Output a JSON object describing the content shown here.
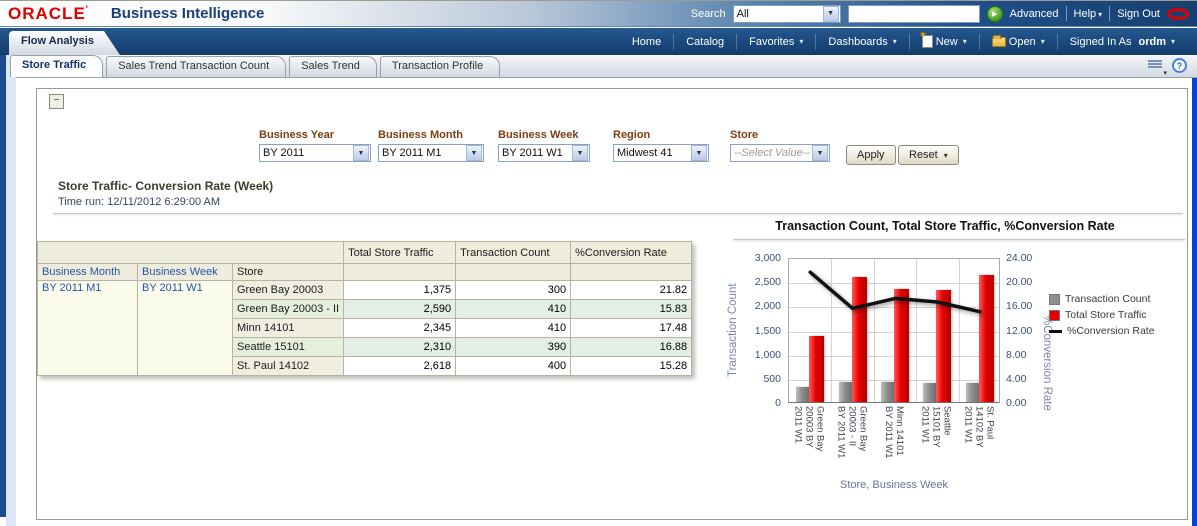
{
  "header": {
    "logo": "ORACLE",
    "product": "Business Intelligence",
    "search_label": "Search",
    "search_scope": "All",
    "search_value": "",
    "advanced": "Advanced",
    "help": "Help",
    "sign_out": "Sign Out"
  },
  "nav": {
    "dashboard_tab": "Flow Analysis",
    "home": "Home",
    "catalog": "Catalog",
    "favorites": "Favorites",
    "dashboards": "Dashboards",
    "new_label": "New",
    "open_label": "Open",
    "signed_in_as": "Signed In As",
    "username": "ordm"
  },
  "tabs": [
    {
      "label": "Store Traffic",
      "active": true
    },
    {
      "label": "Sales Trend Transaction Count",
      "active": false
    },
    {
      "label": "Sales Trend",
      "active": false
    },
    {
      "label": "Transaction Profile",
      "active": false
    }
  ],
  "filters": {
    "prompts": [
      {
        "label": "Business Year",
        "value": "BY 2011",
        "disabled": false
      },
      {
        "label": "Business Month",
        "value": "BY 2011 M1",
        "disabled": false
      },
      {
        "label": "Business Week",
        "value": "BY 2011 W1",
        "disabled": false
      },
      {
        "label": "Region",
        "value": "Midwest 41",
        "disabled": false
      },
      {
        "label": "Store",
        "value": "--Select Value--",
        "disabled": true
      }
    ],
    "apply_label": "Apply",
    "reset_label": "Reset"
  },
  "section": {
    "title": "Store Traffic- Conversion Rate (Week)",
    "time_run": "Time run: 12/11/2012 6:29:00 AM"
  },
  "table": {
    "measure_headers": [
      "Total Store Traffic",
      "Transaction Count",
      "%Conversion Rate"
    ],
    "dim_headers": [
      "Business Month",
      "Business Week",
      "Store"
    ],
    "month": "BY 2011 M1",
    "week": "BY 2011 W1",
    "rows": [
      {
        "store": "Green Bay 20003",
        "traffic": "1,375",
        "count": "300",
        "rate": "21.82"
      },
      {
        "store": "Green Bay 20003 - II",
        "traffic": "2,590",
        "count": "410",
        "rate": "15.83"
      },
      {
        "store": "Minn 14101",
        "traffic": "2,345",
        "count": "410",
        "rate": "17.48"
      },
      {
        "store": "Seattle 15101",
        "traffic": "2,310",
        "count": "390",
        "rate": "16.88"
      },
      {
        "store": "St. Paul 14102",
        "traffic": "2,618",
        "count": "400",
        "rate": "15.28"
      }
    ]
  },
  "chart_data": {
    "type": "bar",
    "title": "Transaction Count, Total Store Traffic, %Conversion Rate",
    "categories": [
      "Green Bay 20003 BY 2011 W1",
      "Green Bay 20003 - II BY 2011 W1",
      "Minn 14101 BY 2011 W1",
      "Seattle 15101 BY 2011 W1",
      "St. Paul 14102 BY 2011 W1"
    ],
    "tick_lines": [
      [
        "Green Bay",
        "20003 BY",
        "2011 W1"
      ],
      [
        "Green Bay",
        "20003 - II",
        "BY 2011 W1"
      ],
      [
        "Minn 14101",
        "BY 2011 W1"
      ],
      [
        "Seattle",
        "15101 BY",
        "2011 W1"
      ],
      [
        "St. Paul",
        "14102 BY",
        "2011 W1"
      ]
    ],
    "series": [
      {
        "name": "Transaction Count",
        "style": "bar",
        "axis": "left",
        "color": "#8e8e8e",
        "values": [
          300,
          410,
          410,
          390,
          400
        ]
      },
      {
        "name": "Total Store Traffic",
        "style": "bar",
        "axis": "left",
        "color": "#e60000",
        "values": [
          1375,
          2590,
          2345,
          2310,
          2618
        ]
      },
      {
        "name": "%Conversion Rate",
        "style": "line",
        "axis": "right",
        "color": "#111111",
        "values": [
          21.82,
          15.83,
          17.48,
          16.88,
          15.28
        ]
      }
    ],
    "left_axis": {
      "label": "Transaction Count",
      "min": 0,
      "max": 3000,
      "ticks": [
        "0",
        "500",
        "1,000",
        "1,500",
        "2,000",
        "2,500",
        "3,000"
      ]
    },
    "right_axis": {
      "label": "%Conversion Rate",
      "min": 0,
      "max": 24,
      "ticks": [
        "0.00",
        "4.00",
        "8.00",
        "12.00",
        "16.00",
        "20.00",
        "24.00"
      ]
    },
    "xlabel": "Store, Business Week",
    "grid": true,
    "legend_position": "right"
  },
  "icons": {
    "dropdown_arrow": "▼",
    "chevron_down": "▾",
    "go_arrow": "▶",
    "help": "?",
    "collapse": "−"
  }
}
